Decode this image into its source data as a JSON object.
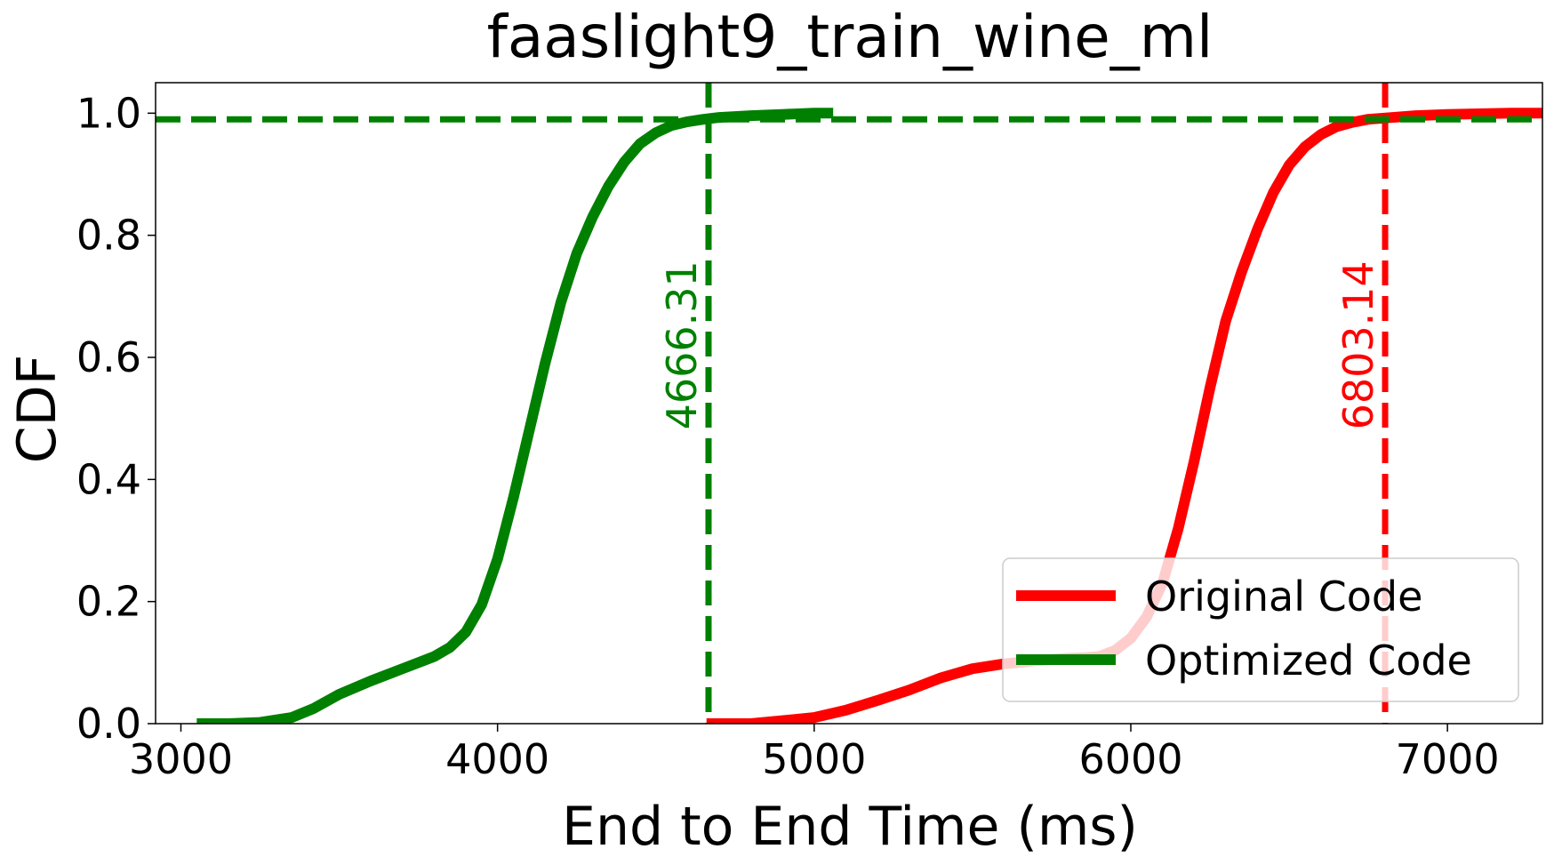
{
  "chart_data": {
    "type": "line",
    "title": "faaslight9_train_wine_ml",
    "xlabel": "End to End Time (ms)",
    "ylabel": "CDF",
    "xlim": [
      2920,
      7300
    ],
    "ylim": [
      0,
      1.05
    ],
    "xticks": [
      3000,
      4000,
      5000,
      6000,
      7000
    ],
    "yticks": [
      0.0,
      0.2,
      0.4,
      0.6,
      0.8,
      1.0
    ],
    "xtick_labels": [
      "3000",
      "4000",
      "5000",
      "6000",
      "7000"
    ],
    "ytick_labels": [
      "0.0",
      "0.2",
      "0.4",
      "0.6",
      "0.8",
      "1.0"
    ],
    "grid": false,
    "legend_position": "lower-right",
    "series": [
      {
        "name": "Original Code",
        "color": "#ff0000",
        "x": [
          4660,
          4800,
          4900,
          5000,
          5100,
          5200,
          5300,
          5400,
          5500,
          5600,
          5700,
          5800,
          5850,
          5900,
          5950,
          6000,
          6050,
          6100,
          6150,
          6200,
          6250,
          6300,
          6350,
          6400,
          6450,
          6500,
          6550,
          6600,
          6650,
          6700,
          6750,
          6800,
          6900,
          7000,
          7100,
          7200,
          7300,
          7360
        ],
        "y": [
          0.0,
          0.0,
          0.005,
          0.01,
          0.022,
          0.038,
          0.055,
          0.075,
          0.09,
          0.098,
          0.103,
          0.107,
          0.108,
          0.11,
          0.12,
          0.14,
          0.175,
          0.23,
          0.32,
          0.43,
          0.55,
          0.66,
          0.74,
          0.81,
          0.87,
          0.915,
          0.945,
          0.965,
          0.978,
          0.985,
          0.99,
          0.992,
          0.996,
          0.998,
          0.999,
          1.0,
          1.0,
          1.0
        ]
      },
      {
        "name": "Optimized Code",
        "color": "#008000",
        "x": [
          3050,
          3150,
          3250,
          3350,
          3420,
          3500,
          3600,
          3700,
          3800,
          3850,
          3900,
          3950,
          4000,
          4050,
          4100,
          4150,
          4200,
          4250,
          4300,
          4350,
          4400,
          4450,
          4500,
          4550,
          4600,
          4650,
          4700,
          4800,
          4900,
          5000,
          5060
        ],
        "y": [
          0.0,
          0.0,
          0.002,
          0.01,
          0.025,
          0.048,
          0.07,
          0.09,
          0.11,
          0.125,
          0.15,
          0.195,
          0.27,
          0.37,
          0.48,
          0.59,
          0.69,
          0.77,
          0.83,
          0.88,
          0.92,
          0.95,
          0.968,
          0.98,
          0.986,
          0.99,
          0.993,
          0.996,
          0.998,
          1.0,
          1.0
        ]
      }
    ],
    "reference_lines": [
      {
        "orientation": "vertical",
        "x": 4666.31,
        "color": "#008000",
        "label": "4666.31"
      },
      {
        "orientation": "vertical",
        "x": 6803.14,
        "color": "#ff0000",
        "label": "6803.14"
      },
      {
        "orientation": "horizontal",
        "y": 0.99,
        "color": "#008000"
      }
    ]
  }
}
